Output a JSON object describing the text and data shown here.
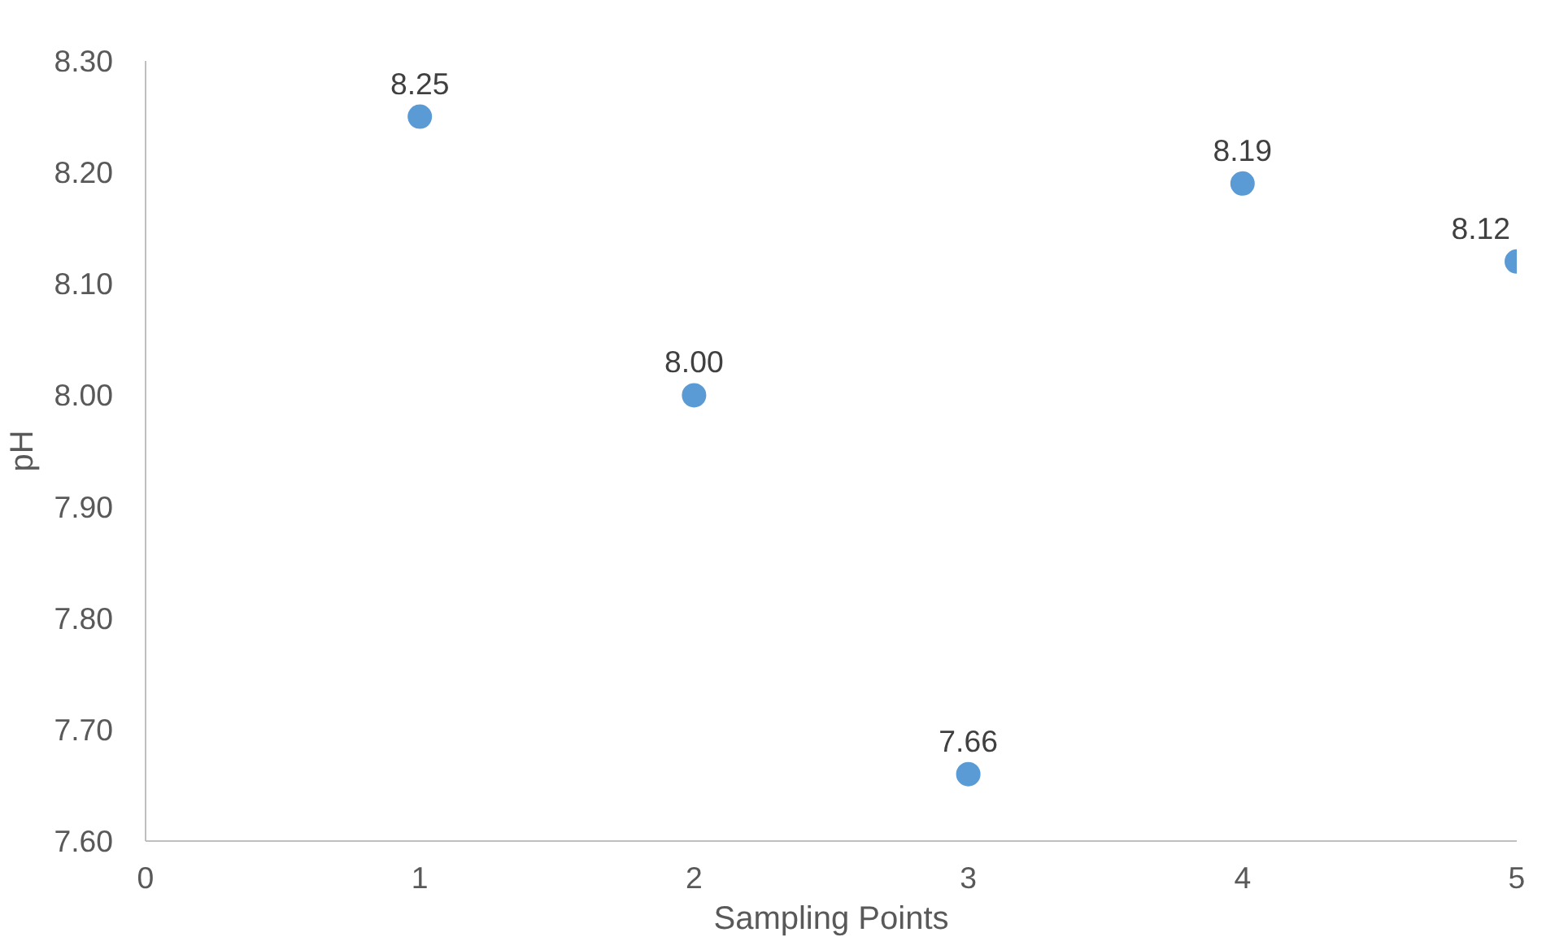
{
  "chart_data": {
    "type": "scatter",
    "xlabel": "Sampling Points",
    "ylabel": "pH",
    "x": [
      1,
      2,
      3,
      4,
      5
    ],
    "series": [
      {
        "color": "#5b9bd5",
        "values": [
          8.25,
          8.0,
          7.66,
          8.19,
          8.12
        ],
        "value_labels": [
          "8.25",
          "8.00",
          "7.66",
          "8.19",
          "8.12"
        ]
      }
    ],
    "xlim": [
      0,
      5
    ],
    "xticks": [
      0,
      1,
      2,
      3,
      4,
      5
    ],
    "ylim": [
      7.6,
      8.3
    ],
    "yticks": [
      {
        "value": 7.6,
        "label": "7.60"
      },
      {
        "value": 7.7,
        "label": "7.70"
      },
      {
        "value": 7.8,
        "label": "7.80"
      },
      {
        "value": 7.9,
        "label": "7.90"
      },
      {
        "value": 8.0,
        "label": "8.00"
      },
      {
        "value": 8.1,
        "label": "8.10"
      },
      {
        "value": 8.2,
        "label": "8.20"
      },
      {
        "value": 8.3,
        "label": "8.30"
      }
    ],
    "grid": false,
    "marker": "circle"
  }
}
